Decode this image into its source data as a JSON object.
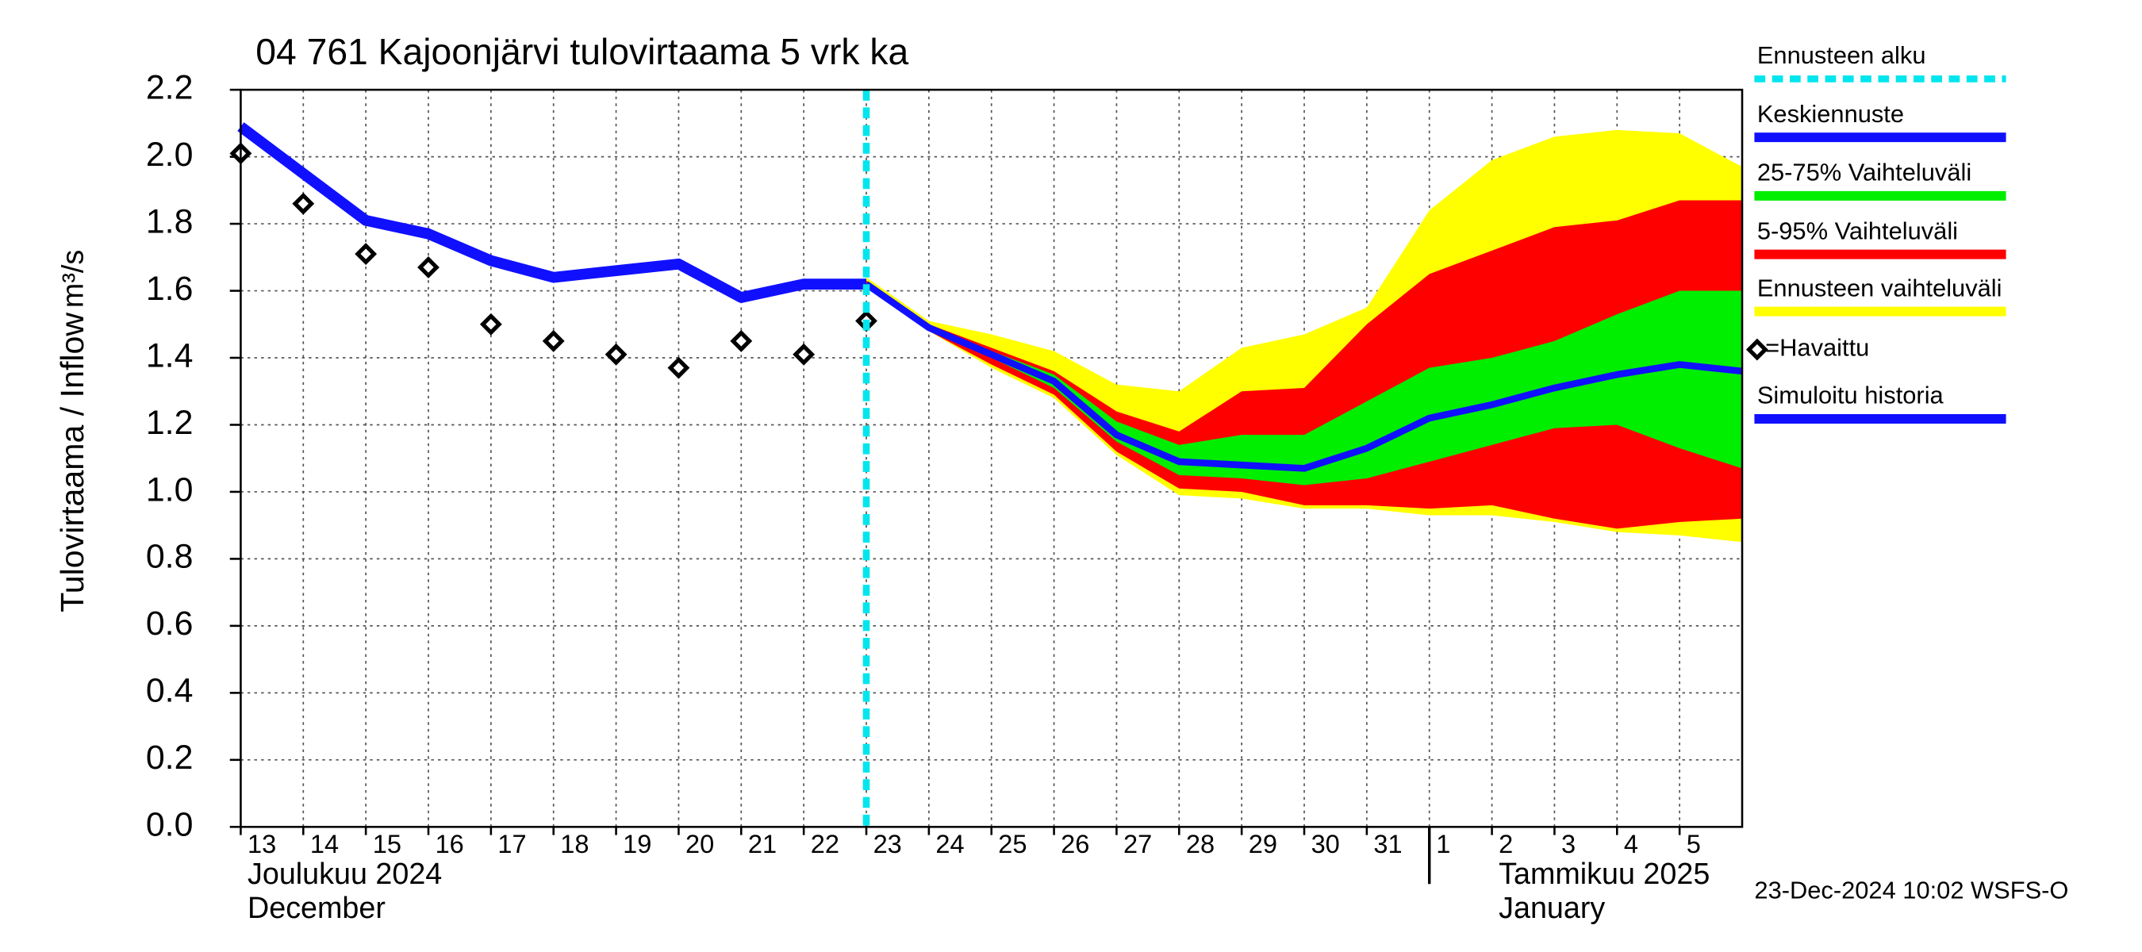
{
  "chart_data": {
    "type": "forecast-band",
    "title": "04 761 Kajoonjärvi tulovirtaama 5 vrk ka",
    "y_label": "Tulovirtaama / Inflow",
    "y_unit": "m³/s",
    "month_labels": [
      {
        "x": "2024-12-13",
        "fi": "Joulukuu  2024",
        "en": "December"
      },
      {
        "x": "2025-01-02",
        "fi": "Tammikuu  2025",
        "en": "January"
      }
    ],
    "footer": "23-Dec-2024 10:02 WSFS-O",
    "xlim": [
      "2024-12-13",
      "2025-01-06"
    ],
    "xticks": [
      {
        "value": "2024-12-13",
        "label": "13"
      },
      {
        "value": "2024-12-14",
        "label": "14"
      },
      {
        "value": "2024-12-15",
        "label": "15"
      },
      {
        "value": "2024-12-16",
        "label": "16"
      },
      {
        "value": "2024-12-17",
        "label": "17"
      },
      {
        "value": "2024-12-18",
        "label": "18"
      },
      {
        "value": "2024-12-19",
        "label": "19"
      },
      {
        "value": "2024-12-20",
        "label": "20"
      },
      {
        "value": "2024-12-21",
        "label": "21"
      },
      {
        "value": "2024-12-22",
        "label": "22"
      },
      {
        "value": "2024-12-23",
        "label": "23"
      },
      {
        "value": "2024-12-24",
        "label": "24"
      },
      {
        "value": "2024-12-25",
        "label": "25"
      },
      {
        "value": "2024-12-26",
        "label": "26"
      },
      {
        "value": "2024-12-27",
        "label": "27"
      },
      {
        "value": "2024-12-28",
        "label": "28"
      },
      {
        "value": "2024-12-29",
        "label": "29"
      },
      {
        "value": "2024-12-30",
        "label": "30"
      },
      {
        "value": "2024-12-31",
        "label": "31"
      },
      {
        "value": "2025-01-01",
        "label": "1"
      },
      {
        "value": "2025-01-02",
        "label": "2"
      },
      {
        "value": "2025-01-03",
        "label": "3"
      },
      {
        "value": "2025-01-04",
        "label": "4"
      },
      {
        "value": "2025-01-05",
        "label": "5"
      }
    ],
    "ylim": [
      0,
      2.2
    ],
    "yticks": [
      {
        "value": 0,
        "label": "0.0"
      },
      0.2,
      0.4,
      0.6,
      0.8,
      {
        "value": 1,
        "label": "1.0"
      },
      1.2,
      1.4,
      1.6,
      1.8,
      {
        "value": 2,
        "label": "2.0"
      },
      2.2
    ],
    "grid": true,
    "forecast_start": {
      "name": "Ennusteen alku",
      "x": "2024-12-23",
      "color": "#00e5ee"
    },
    "bands": [
      {
        "name": "Ennusteen vaihteluväli",
        "color": "#ffff00",
        "x": [
          "2024-12-23",
          "2024-12-24",
          "2024-12-25",
          "2024-12-26",
          "2024-12-27",
          "2024-12-28",
          "2024-12-29",
          "2024-12-30",
          "2024-12-31",
          "2025-01-01",
          "2025-01-02",
          "2025-01-03",
          "2025-01-04",
          "2025-01-05",
          "2025-01-06"
        ],
        "upper": [
          1.64,
          1.51,
          1.47,
          1.42,
          1.32,
          1.3,
          1.43,
          1.47,
          1.55,
          1.84,
          1.99,
          2.06,
          2.08,
          2.07,
          1.97
        ],
        "lower": [
          1.62,
          1.48,
          1.37,
          1.28,
          1.11,
          0.99,
          0.98,
          0.95,
          0.95,
          0.93,
          0.93,
          0.91,
          0.88,
          0.87,
          0.85
        ]
      },
      {
        "name": "5-95% Vaihteluväli",
        "color": "#ff0000",
        "x": [
          "2024-12-23",
          "2024-12-24",
          "2024-12-25",
          "2024-12-26",
          "2024-12-27",
          "2024-12-28",
          "2024-12-29",
          "2024-12-30",
          "2024-12-31",
          "2025-01-01",
          "2025-01-02",
          "2025-01-03",
          "2025-01-04",
          "2025-01-05",
          "2025-01-06"
        ],
        "upper": [
          1.63,
          1.5,
          1.43,
          1.36,
          1.24,
          1.18,
          1.3,
          1.31,
          1.5,
          1.65,
          1.72,
          1.79,
          1.81,
          1.87,
          1.87
        ],
        "lower": [
          1.62,
          1.48,
          1.38,
          1.29,
          1.12,
          1.01,
          1.0,
          0.96,
          0.96,
          0.95,
          0.96,
          0.92,
          0.89,
          0.91,
          0.92
        ]
      },
      {
        "name": "25-75% Vaihteluväli",
        "color": "#00ee00",
        "x": [
          "2024-12-23",
          "2024-12-24",
          "2024-12-25",
          "2024-12-26",
          "2024-12-27",
          "2024-12-28",
          "2024-12-29",
          "2024-12-30",
          "2024-12-31",
          "2025-01-01",
          "2025-01-02",
          "2025-01-03",
          "2025-01-04",
          "2025-01-05",
          "2025-01-06"
        ],
        "upper": [
          1.62,
          1.49,
          1.42,
          1.35,
          1.21,
          1.14,
          1.17,
          1.17,
          1.27,
          1.37,
          1.4,
          1.45,
          1.53,
          1.6,
          1.6
        ],
        "lower": [
          1.62,
          1.49,
          1.4,
          1.31,
          1.15,
          1.05,
          1.04,
          1.02,
          1.04,
          1.09,
          1.14,
          1.19,
          1.2,
          1.13,
          1.07
        ]
      }
    ],
    "series": [
      {
        "name": "Keskiennuste",
        "style": "line",
        "color": "#1010ff",
        "x": [
          "2024-12-23",
          "2024-12-24",
          "2024-12-25",
          "2024-12-26",
          "2024-12-27",
          "2024-12-28",
          "2024-12-29",
          "2024-12-30",
          "2024-12-31",
          "2025-01-01",
          "2025-01-02",
          "2025-01-03",
          "2025-01-04",
          "2025-01-05",
          "2025-01-06"
        ],
        "values": [
          1.62,
          1.49,
          1.41,
          1.33,
          1.17,
          1.09,
          1.08,
          1.07,
          1.13,
          1.22,
          1.26,
          1.31,
          1.35,
          1.38,
          1.36
        ]
      },
      {
        "name": "=Havaittu",
        "style": "diamond",
        "color": "#000000",
        "x": [
          "2024-12-13",
          "2024-12-14",
          "2024-12-15",
          "2024-12-16",
          "2024-12-17",
          "2024-12-18",
          "2024-12-19",
          "2024-12-20",
          "2024-12-21",
          "2024-12-22",
          "2024-12-23"
        ],
        "values": [
          2.01,
          1.86,
          1.71,
          1.67,
          1.5,
          1.45,
          1.41,
          1.37,
          1.45,
          1.41,
          1.51
        ]
      },
      {
        "name": "Simuloitu historia",
        "style": "line",
        "color": "#1010ff",
        "x": [
          "2024-12-13",
          "2024-12-14",
          "2024-12-15",
          "2024-12-16",
          "2024-12-17",
          "2024-12-18",
          "2024-12-19",
          "2024-12-20",
          "2024-12-21",
          "2024-12-22",
          "2024-12-23"
        ],
        "values": [
          2.09,
          1.95,
          1.81,
          1.77,
          1.69,
          1.64,
          1.66,
          1.68,
          1.58,
          1.62,
          1.62
        ]
      }
    ]
  }
}
